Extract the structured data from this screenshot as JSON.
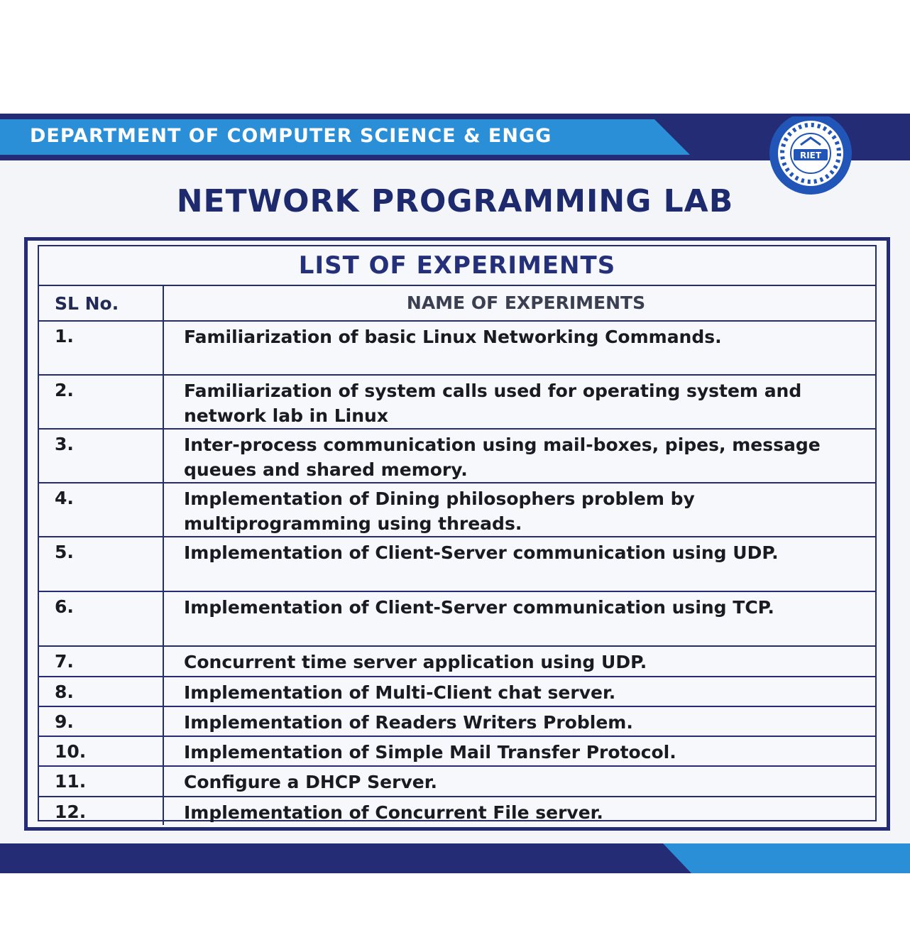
{
  "header": {
    "department": "DEPARTMENT OF COMPUTER SCIENCE & ENGG",
    "logo_initials": "RIET",
    "colors": {
      "navy": "#232c74",
      "blue": "#2b8fd8",
      "title": "#1e2a6e"
    }
  },
  "lab_title": "NETWORK PROGRAMMING LAB",
  "table": {
    "title": "LIST OF EXPERIMENTS",
    "col_sl": "SL No.",
    "col_name": "NAME OF EXPERIMENTS",
    "rows": [
      {
        "no": "1.",
        "name": "Familiarization of basic Linux Networking Commands."
      },
      {
        "no": "2.",
        "name": "Familiarization of system calls used for operating system and network lab in Linux"
      },
      {
        "no": "3.",
        "name": "Inter-process communication using mail-boxes, pipes, message queues and shared memory."
      },
      {
        "no": "4.",
        "name": "Implementation of Dining philosophers problem by multiprogramming using threads."
      },
      {
        "no": "5.",
        "name": "Implementation of Client-Server communication using UDP."
      },
      {
        "no": "6.",
        "name": "Implementation of Client-Server communication using TCP."
      },
      {
        "no": "7.",
        "name": "Concurrent time server application using UDP."
      },
      {
        "no": "8.",
        "name": "Implementation of Multi-Client chat server."
      },
      {
        "no": "9.",
        "name": "Implementation of Readers Writers Problem."
      },
      {
        "no": "10.",
        "name": "Implementation of Simple Mail Transfer Protocol."
      },
      {
        "no": "11.",
        "name": "Configure a DHCP Server."
      },
      {
        "no": "12.",
        "name": "Implementation of Concurrent File server."
      }
    ]
  }
}
